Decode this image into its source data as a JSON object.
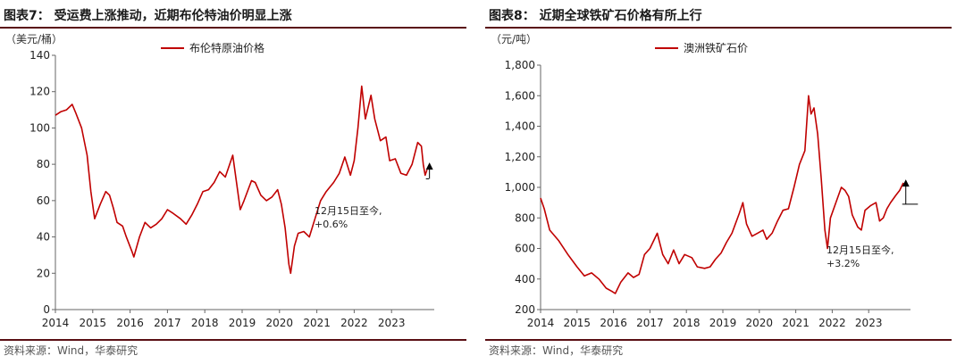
{
  "charts": [
    {
      "figure_title": "图表7： 受运费上涨推动，近期布伦特油价明显上涨",
      "source": "资料来源：Wind，华泰研究",
      "line_color": "#c00000",
      "chart_data": {
        "type": "line",
        "title": "",
        "unit_label": "（美元/桶）",
        "xlabel": "",
        "ylabel": "",
        "xlim": [
          2014.0,
          2024.0
        ],
        "ylim": [
          0,
          140
        ],
        "yticks": [
          0,
          20,
          40,
          60,
          80,
          100,
          120,
          140
        ],
        "ytick_labels": [
          "0",
          "20",
          "40",
          "60",
          "80",
          "100",
          "120",
          "140"
        ],
        "xticks": [
          2014,
          2015,
          2016,
          2017,
          2018,
          2019,
          2020,
          2021,
          2022,
          2023
        ],
        "xtick_labels": [
          "2014",
          "2015",
          "2016",
          "2017",
          "2018",
          "2019",
          "2020",
          "2021",
          "2022",
          "2023"
        ],
        "legend_position": "top-center",
        "grid": false,
        "series": [
          {
            "name": "布伦特原油价格",
            "points": [
              [
                2014.0,
                107
              ],
              [
                2014.15,
                109
              ],
              [
                2014.3,
                110
              ],
              [
                2014.45,
                113
              ],
              [
                2014.55,
                108
              ],
              [
                2014.7,
                100
              ],
              [
                2014.85,
                85
              ],
              [
                2014.95,
                65
              ],
              [
                2015.05,
                50
              ],
              [
                2015.2,
                58
              ],
              [
                2015.35,
                65
              ],
              [
                2015.45,
                63
              ],
              [
                2015.55,
                56
              ],
              [
                2015.65,
                48
              ],
              [
                2015.8,
                46
              ],
              [
                2015.9,
                40
              ],
              [
                2016.05,
                32
              ],
              [
                2016.1,
                29
              ],
              [
                2016.25,
                40
              ],
              [
                2016.4,
                48
              ],
              [
                2016.55,
                45
              ],
              [
                2016.7,
                47
              ],
              [
                2016.85,
                50
              ],
              [
                2017.0,
                55
              ],
              [
                2017.15,
                53
              ],
              [
                2017.35,
                50
              ],
              [
                2017.5,
                47
              ],
              [
                2017.65,
                52
              ],
              [
                2017.8,
                58
              ],
              [
                2017.95,
                65
              ],
              [
                2018.1,
                66
              ],
              [
                2018.25,
                70
              ],
              [
                2018.4,
                76
              ],
              [
                2018.55,
                73
              ],
              [
                2018.75,
                85
              ],
              [
                2018.85,
                70
              ],
              [
                2018.95,
                55
              ],
              [
                2019.05,
                60
              ],
              [
                2019.25,
                71
              ],
              [
                2019.35,
                70
              ],
              [
                2019.5,
                63
              ],
              [
                2019.65,
                60
              ],
              [
                2019.8,
                62
              ],
              [
                2019.95,
                66
              ],
              [
                2020.05,
                58
              ],
              [
                2020.15,
                45
              ],
              [
                2020.25,
                25
              ],
              [
                2020.3,
                20
              ],
              [
                2020.4,
                35
              ],
              [
                2020.5,
                42
              ],
              [
                2020.65,
                43
              ],
              [
                2020.8,
                40
              ],
              [
                2020.95,
                50
              ],
              [
                2021.1,
                60
              ],
              [
                2021.25,
                65
              ],
              [
                2021.45,
                70
              ],
              [
                2021.6,
                75
              ],
              [
                2021.75,
                84
              ],
              [
                2021.9,
                74
              ],
              [
                2022.0,
                82
              ],
              [
                2022.1,
                100
              ],
              [
                2022.2,
                123
              ],
              [
                2022.3,
                105
              ],
              [
                2022.45,
                118
              ],
              [
                2022.55,
                105
              ],
              [
                2022.7,
                93
              ],
              [
                2022.85,
                95
              ],
              [
                2022.95,
                82
              ],
              [
                2023.1,
                83
              ],
              [
                2023.25,
                75
              ],
              [
                2023.4,
                74
              ],
              [
                2023.55,
                80
              ],
              [
                2023.7,
                92
              ],
              [
                2023.8,
                90
              ],
              [
                2023.85,
                80
              ],
              [
                2023.9,
                74
              ],
              [
                2023.95,
                77
              ]
            ]
          }
        ],
        "annotation": {
          "text_lines": [
            "12月15日至今,",
            "+0.6%"
          ],
          "x_from": 2023.92,
          "x_to": 2024.0,
          "y_base": 72,
          "y_tip": 80
        }
      }
    },
    {
      "figure_title": "图表8： 近期全球铁矿石价格有所上行",
      "source": "资料来源：Wind，华泰研究",
      "line_color": "#c00000",
      "chart_data": {
        "type": "line",
        "title": "",
        "unit_label": "（元/吨）",
        "xlabel": "",
        "ylabel": "",
        "xlim": [
          2014.0,
          2024.0
        ],
        "ylim": [
          200,
          1800
        ],
        "yticks": [
          200,
          400,
          600,
          800,
          1000,
          1200,
          1400,
          1600,
          1800
        ],
        "ytick_labels": [
          "200",
          "400",
          "600",
          "800",
          "1,000",
          "1,200",
          "1,400",
          "1,600",
          "1,800"
        ],
        "xticks": [
          2014,
          2015,
          2016,
          2017,
          2018,
          2019,
          2020,
          2021,
          2022,
          2023
        ],
        "xtick_labels": [
          "2014",
          "2015",
          "2016",
          "2017",
          "2018",
          "2019",
          "2020",
          "2021",
          "2022",
          "2023"
        ],
        "legend_position": "top-center",
        "grid": false,
        "series": [
          {
            "name": "澳洲铁矿石价",
            "points": [
              [
                2014.0,
                930
              ],
              [
                2014.1,
                860
              ],
              [
                2014.25,
                720
              ],
              [
                2014.5,
                650
              ],
              [
                2014.75,
                560
              ],
              [
                2015.0,
                480
              ],
              [
                2015.2,
                420
              ],
              [
                2015.4,
                440
              ],
              [
                2015.6,
                400
              ],
              [
                2015.8,
                340
              ],
              [
                2015.95,
                320
              ],
              [
                2016.05,
                305
              ],
              [
                2016.2,
                380
              ],
              [
                2016.4,
                440
              ],
              [
                2016.55,
                410
              ],
              [
                2016.7,
                430
              ],
              [
                2016.85,
                560
              ],
              [
                2017.0,
                600
              ],
              [
                2017.2,
                700
              ],
              [
                2017.35,
                560
              ],
              [
                2017.5,
                500
              ],
              [
                2017.65,
                590
              ],
              [
                2017.8,
                500
              ],
              [
                2017.95,
                560
              ],
              [
                2018.15,
                540
              ],
              [
                2018.3,
                480
              ],
              [
                2018.5,
                470
              ],
              [
                2018.65,
                480
              ],
              [
                2018.8,
                530
              ],
              [
                2018.95,
                570
              ],
              [
                2019.1,
                640
              ],
              [
                2019.25,
                700
              ],
              [
                2019.45,
                830
              ],
              [
                2019.55,
                900
              ],
              [
                2019.65,
                760
              ],
              [
                2019.8,
                680
              ],
              [
                2019.95,
                700
              ],
              [
                2020.1,
                720
              ],
              [
                2020.2,
                660
              ],
              [
                2020.35,
                700
              ],
              [
                2020.5,
                780
              ],
              [
                2020.65,
                850
              ],
              [
                2020.8,
                860
              ],
              [
                2020.95,
                1000
              ],
              [
                2021.1,
                1150
              ],
              [
                2021.25,
                1240
              ],
              [
                2021.35,
                1600
              ],
              [
                2021.42,
                1480
              ],
              [
                2021.5,
                1520
              ],
              [
                2021.6,
                1350
              ],
              [
                2021.7,
                1050
              ],
              [
                2021.8,
                720
              ],
              [
                2021.87,
                600
              ],
              [
                2021.95,
                800
              ],
              [
                2022.1,
                900
              ],
              [
                2022.25,
                1000
              ],
              [
                2022.35,
                980
              ],
              [
                2022.45,
                940
              ],
              [
                2022.55,
                820
              ],
              [
                2022.7,
                740
              ],
              [
                2022.8,
                720
              ],
              [
                2022.9,
                850
              ],
              [
                2023.05,
                880
              ],
              [
                2023.2,
                900
              ],
              [
                2023.3,
                780
              ],
              [
                2023.4,
                800
              ],
              [
                2023.5,
                860
              ],
              [
                2023.6,
                900
              ],
              [
                2023.75,
                950
              ],
              [
                2023.85,
                980
              ],
              [
                2023.95,
                1030
              ]
            ]
          }
        ],
        "annotation": {
          "text_lines": [
            "12月15日至今,",
            "+3.2%"
          ],
          "x_from": 2023.92,
          "x_to": 2024.35,
          "y_base": 890,
          "y_tip": 1040
        }
      }
    }
  ]
}
